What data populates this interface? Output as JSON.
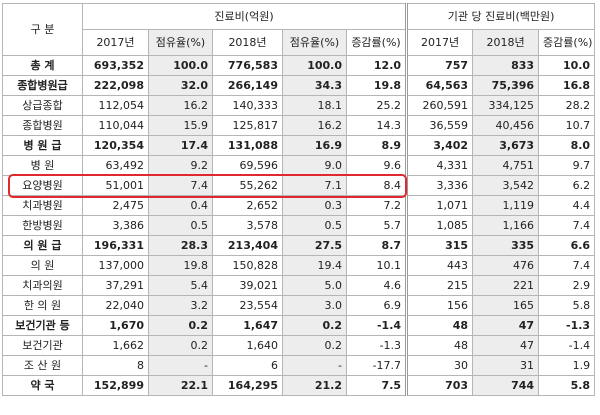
{
  "header": {
    "row_label": "구  분",
    "group_cost": "진료비(억원)",
    "group_per": "기관 당 진료비(백만원)",
    "columns": [
      "2017년",
      "점유율(%)",
      "2018년",
      "점유율(%)",
      "증감률(%)",
      "2017년",
      "2018년",
      "증감률(%)"
    ]
  },
  "rows": [
    {
      "name": "총    계",
      "bold": true,
      "values": [
        "693,352",
        "100.0",
        "776,583",
        "100.0",
        "12.0",
        "757",
        "833",
        "10.0"
      ]
    },
    {
      "name": "종합병원급",
      "bold": true,
      "values": [
        "222,098",
        "32.0",
        "266,149",
        "34.3",
        "19.8",
        "64,563",
        "75,396",
        "16.8"
      ]
    },
    {
      "name": "상급종합",
      "bold": false,
      "values": [
        "112,054",
        "16.2",
        "140,333",
        "18.1",
        "25.2",
        "260,591",
        "334,125",
        "28.2"
      ]
    },
    {
      "name": "종합병원",
      "bold": false,
      "values": [
        "110,044",
        "15.9",
        "125,817",
        "16.2",
        "14.3",
        "36,559",
        "40,456",
        "10.7"
      ]
    },
    {
      "name": "병 원 급",
      "bold": true,
      "values": [
        "120,354",
        "17.4",
        "131,088",
        "16.9",
        "8.9",
        "3,402",
        "3,673",
        "8.0"
      ]
    },
    {
      "name": "병    원",
      "bold": false,
      "values": [
        "63,492",
        "9.2",
        "69,596",
        "9.0",
        "9.6",
        "4,331",
        "4,751",
        "9.7"
      ]
    },
    {
      "name": "요양병원",
      "bold": false,
      "values": [
        "51,001",
        "7.4",
        "55,262",
        "7.1",
        "8.4",
        "3,336",
        "3,542",
        "6.2"
      ]
    },
    {
      "name": "치과병원",
      "bold": false,
      "values": [
        "2,475",
        "0.4",
        "2,652",
        "0.3",
        "7.2",
        "1,071",
        "1,119",
        "4.4"
      ]
    },
    {
      "name": "한방병원",
      "bold": false,
      "values": [
        "3,386",
        "0.5",
        "3,578",
        "0.5",
        "5.7",
        "1,085",
        "1,166",
        "7.4"
      ]
    },
    {
      "name": "의 원 급",
      "bold": true,
      "values": [
        "196,331",
        "28.3",
        "213,404",
        "27.5",
        "8.7",
        "315",
        "335",
        "6.6"
      ]
    },
    {
      "name": "의    원",
      "bold": false,
      "values": [
        "137,000",
        "19.8",
        "150,828",
        "19.4",
        "10.1",
        "443",
        "476",
        "7.4"
      ]
    },
    {
      "name": "치과의원",
      "bold": false,
      "values": [
        "37,291",
        "5.4",
        "39,021",
        "5.0",
        "4.6",
        "215",
        "221",
        "2.9"
      ]
    },
    {
      "name": "한 의 원",
      "bold": false,
      "values": [
        "22,040",
        "3.2",
        "23,554",
        "3.0",
        "6.9",
        "156",
        "165",
        "5.8"
      ]
    },
    {
      "name": "보건기관 등",
      "bold": true,
      "values": [
        "1,670",
        "0.2",
        "1,647",
        "0.2",
        "-1.4",
        "48",
        "47",
        "-1.3"
      ]
    },
    {
      "name": "보건기관",
      "bold": false,
      "values": [
        "1,662",
        "0.2",
        "1,640",
        "0.2",
        "-1.3",
        "48",
        "47",
        "-1.4"
      ]
    },
    {
      "name": "조 산 원",
      "bold": false,
      "values": [
        "8",
        "-",
        "6",
        "-",
        "-17.7",
        "30",
        "31",
        "1.9"
      ]
    },
    {
      "name": "약    국",
      "bold": true,
      "values": [
        "152,899",
        "22.1",
        "164,295",
        "21.2",
        "7.5",
        "703",
        "744",
        "5.8"
      ]
    }
  ],
  "highlight": {
    "row": "요양병원",
    "color": "#e0282e"
  }
}
